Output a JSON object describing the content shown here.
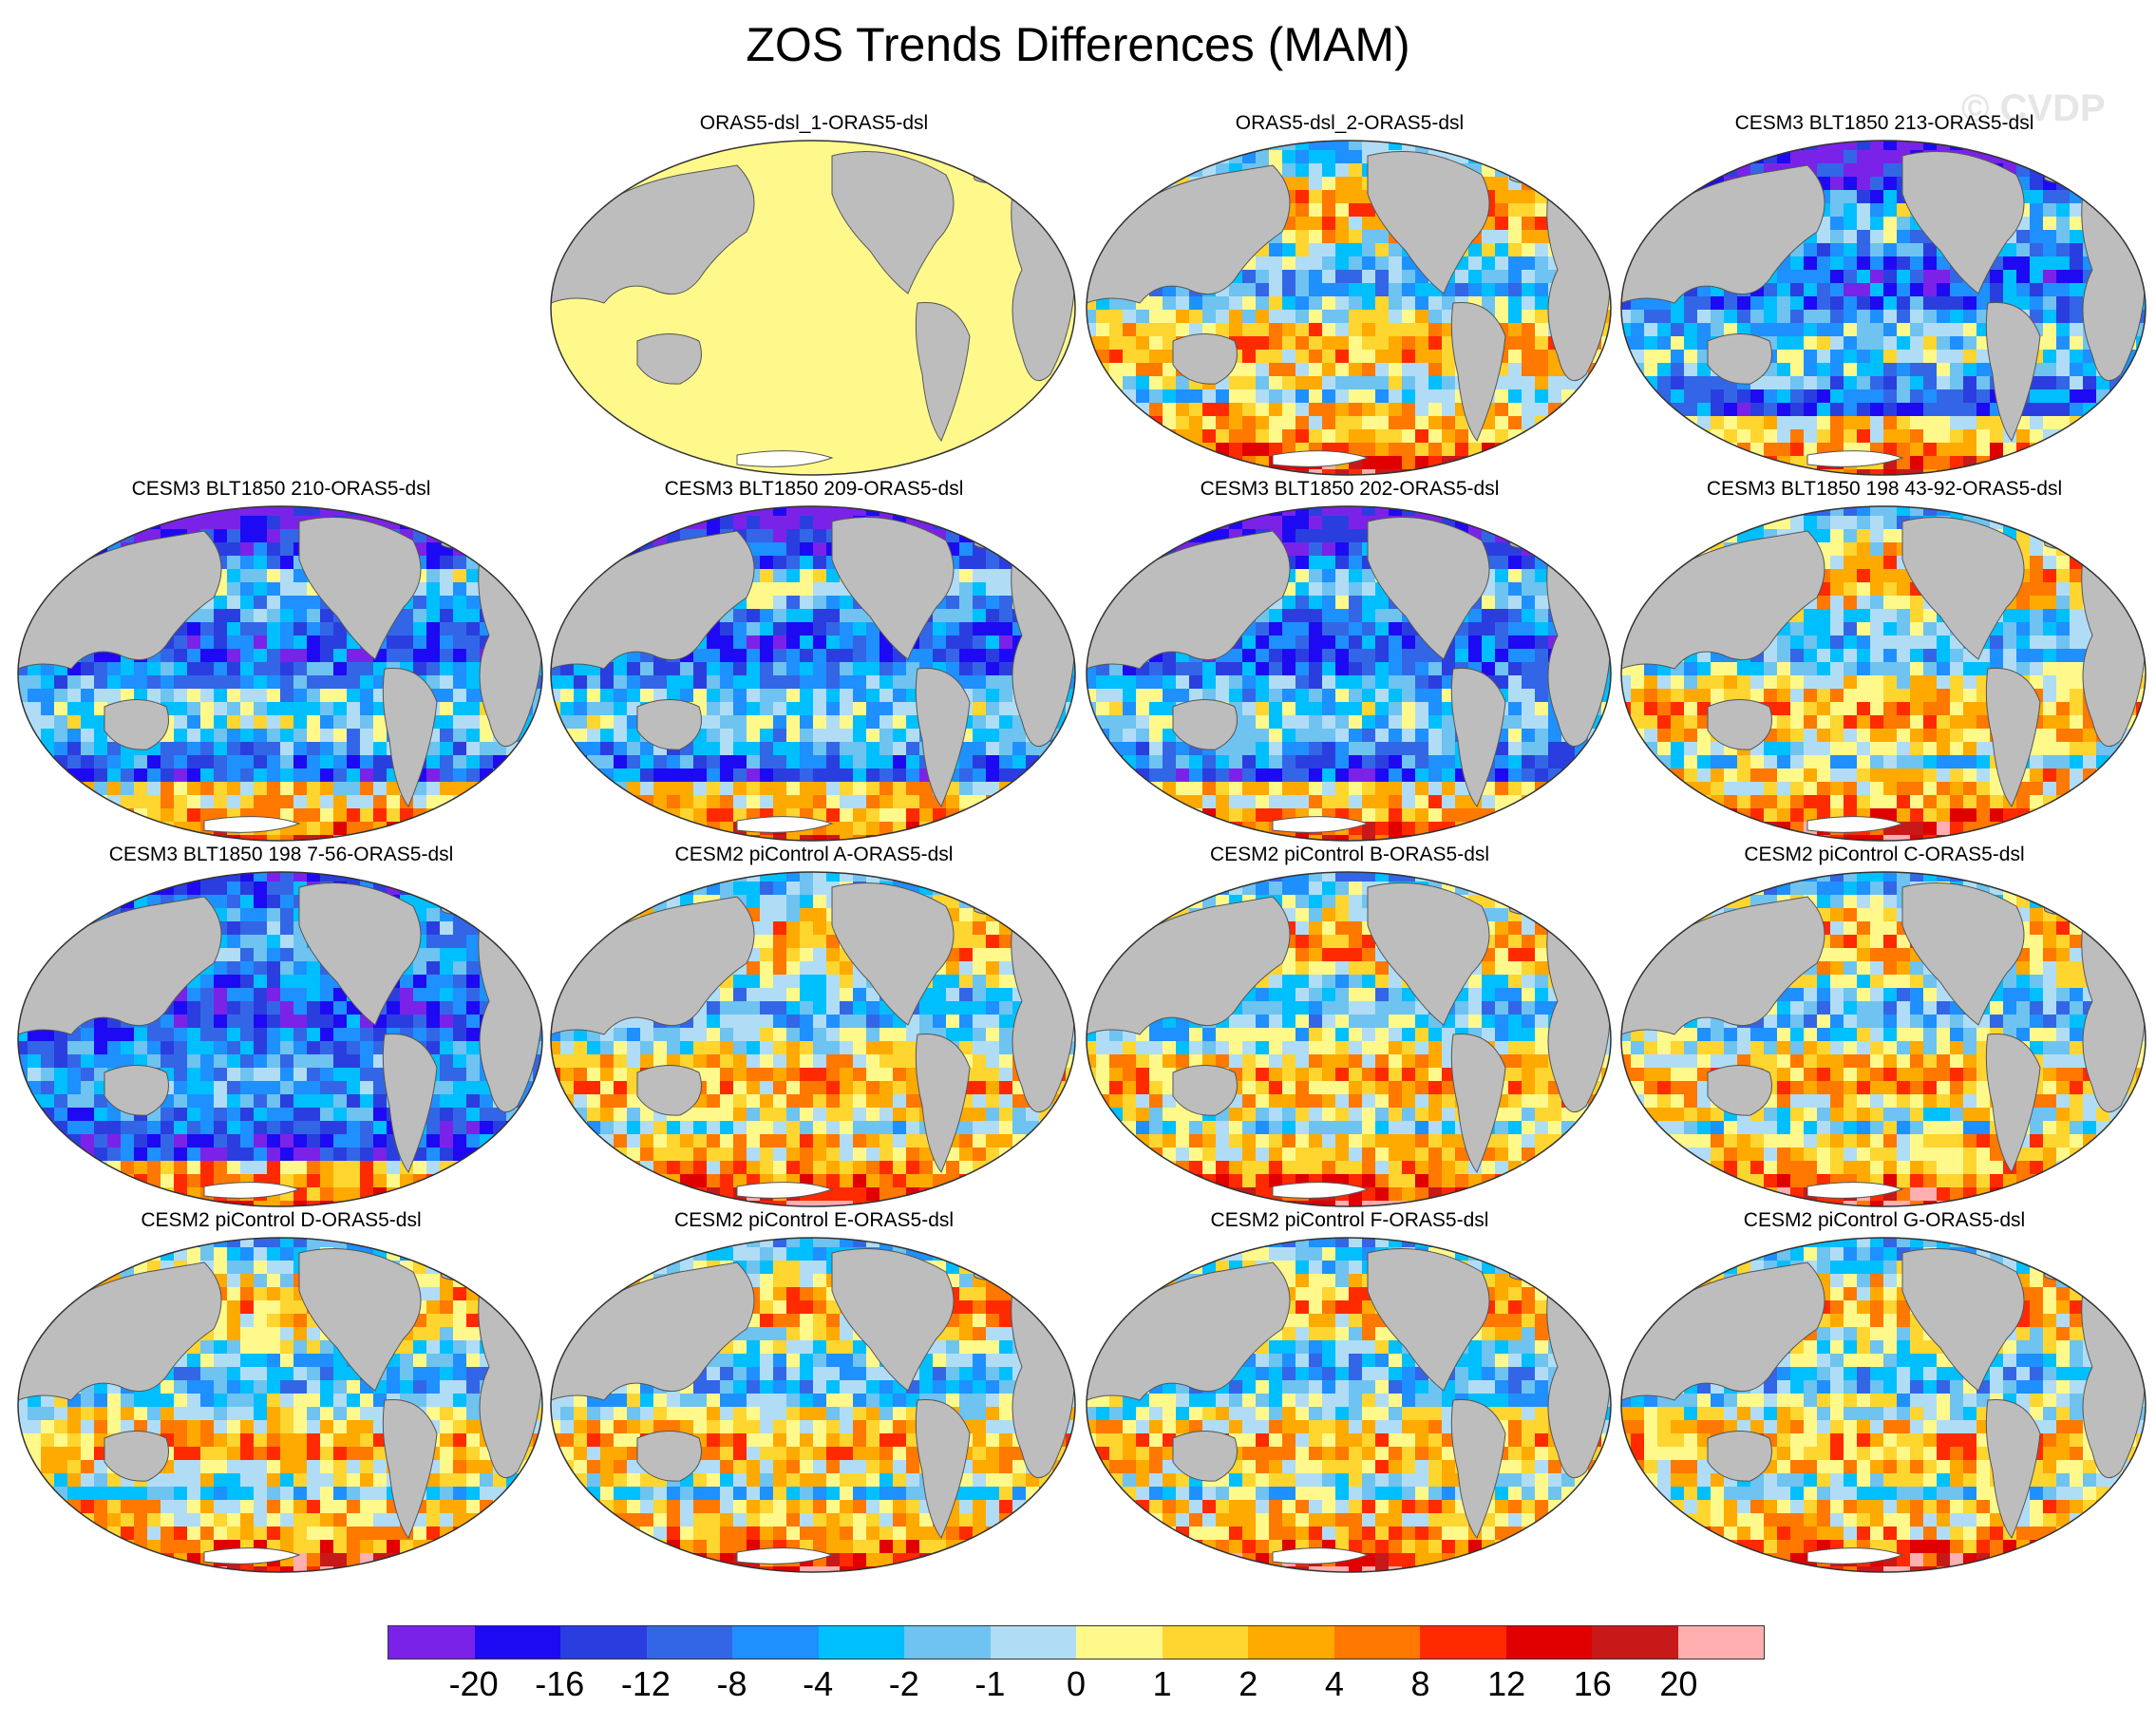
{
  "title": "ZOS Trends Differences (MAM)",
  "watermark": "© CVDP",
  "land_color": "#bdbdbd",
  "panels": [
    {
      "label": "",
      "pattern": "none"
    },
    {
      "label": "ORAS5-dsl_1-ORAS5-dsl",
      "pattern": "zero"
    },
    {
      "label": "ORAS5-dsl_2-ORAS5-dsl",
      "pattern": "mixed"
    },
    {
      "label": "CESM3 BLT1850 213-ORAS5-dsl",
      "pattern": "blue"
    },
    {
      "label": "CESM3 BLT1850 210-ORAS5-dsl",
      "pattern": "blue"
    },
    {
      "label": "CESM3 BLT1850 209-ORAS5-dsl",
      "pattern": "blue"
    },
    {
      "label": "CESM3 BLT1850 202-ORAS5-dsl",
      "pattern": "blue"
    },
    {
      "label": "CESM3 BLT1850 198 43-92-ORAS5-dsl",
      "pattern": "mixed"
    },
    {
      "label": "CESM3 BLT1850 198 7-56-ORAS5-dsl",
      "pattern": "deepblue"
    },
    {
      "label": "CESM2 piControl A-ORAS5-dsl",
      "pattern": "mixed"
    },
    {
      "label": "CESM2 piControl B-ORAS5-dsl",
      "pattern": "mixed"
    },
    {
      "label": "CESM2 piControl C-ORAS5-dsl",
      "pattern": "mixed"
    },
    {
      "label": "CESM2 piControl D-ORAS5-dsl",
      "pattern": "mixed"
    },
    {
      "label": "CESM2 piControl E-ORAS5-dsl",
      "pattern": "mixed"
    },
    {
      "label": "CESM2 piControl F-ORAS5-dsl",
      "pattern": "mixed"
    },
    {
      "label": "CESM2 piControl G-ORAS5-dsl",
      "pattern": "mixed"
    }
  ],
  "colorbar": {
    "colors": [
      "#7b22e8",
      "#1d0af2",
      "#2a3ee0",
      "#3366e6",
      "#1e90ff",
      "#00bfff",
      "#6ec3f0",
      "#b0ddf5",
      "#fff98c",
      "#ffd530",
      "#ffaa00",
      "#ff7800",
      "#ff2a00",
      "#e00000",
      "#c81919",
      "#ffafaf"
    ],
    "labels": [
      "-20",
      "-16",
      "-12",
      "-8",
      "-4",
      "-2",
      "-1",
      "0",
      "1",
      "2",
      "4",
      "8",
      "12",
      "16",
      "20"
    ]
  }
}
